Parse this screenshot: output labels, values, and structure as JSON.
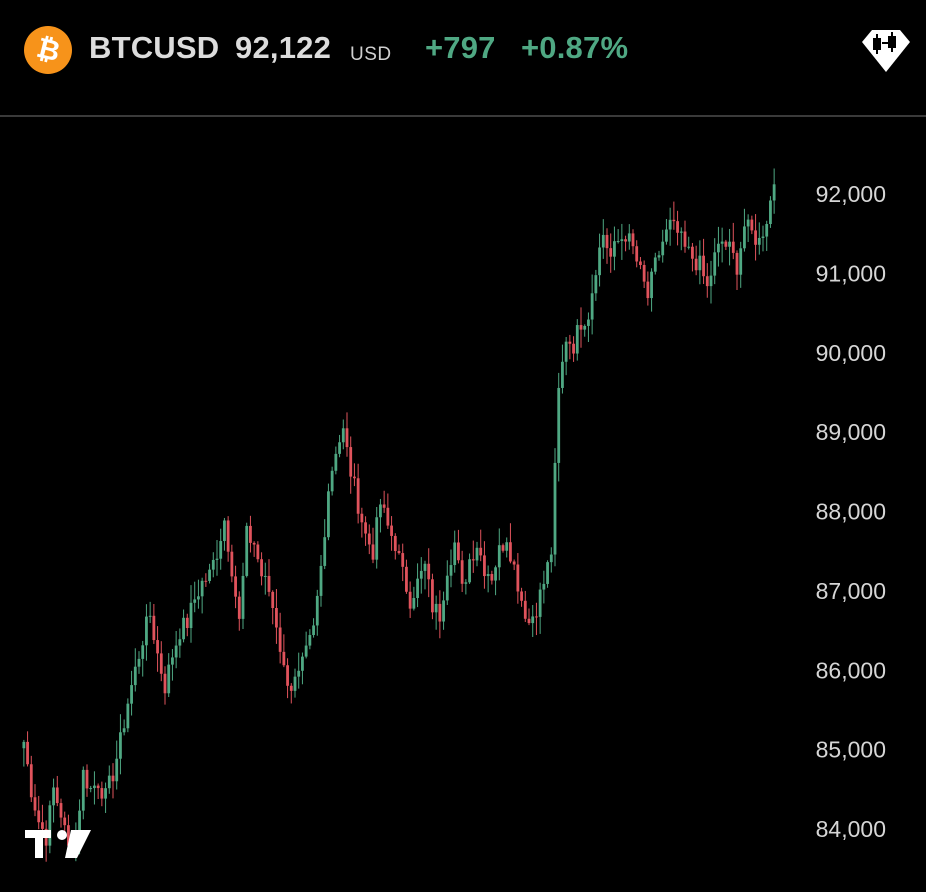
{
  "header": {
    "symbol": "BTCUSD",
    "price": "92,122",
    "currency": "USD",
    "change": "+797",
    "change_pct": "+0.87%",
    "coin_icon": "bitcoin-icon",
    "chart_type_icon": "candlestick-icon"
  },
  "colors": {
    "up": "#4fa883",
    "down": "#e0535c",
    "background": "#000000",
    "accent": "#f7931a"
  },
  "chart_data": {
    "type": "candlestick",
    "title": "",
    "xlabel": "",
    "ylabel": "",
    "y_axis_side": "right",
    "grid": false,
    "legend": false,
    "ylim": [
      83600,
      92900
    ],
    "yticks": [
      84000,
      85000,
      86000,
      87000,
      88000,
      89000,
      90000,
      91000,
      92000
    ],
    "ytick_labels": [
      "84,000",
      "85,000",
      "86,000",
      "87,000",
      "88,000",
      "89,000",
      "90,000",
      "91,000",
      "92,000"
    ],
    "close_path": [
      [
        0,
        85100
      ],
      [
        2,
        84500
      ],
      [
        4,
        84100
      ],
      [
        6,
        83900
      ],
      [
        8,
        84500
      ],
      [
        10,
        84200
      ],
      [
        12,
        83750
      ],
      [
        14,
        83900
      ],
      [
        16,
        84700
      ],
      [
        18,
        84500
      ],
      [
        20,
        84600
      ],
      [
        22,
        84400
      ],
      [
        24,
        84700
      ],
      [
        26,
        85100
      ],
      [
        28,
        85600
      ],
      [
        30,
        86000
      ],
      [
        32,
        86400
      ],
      [
        34,
        86700
      ],
      [
        36,
        86200
      ],
      [
        38,
        85800
      ],
      [
        40,
        86200
      ],
      [
        42,
        86500
      ],
      [
        44,
        86600
      ],
      [
        46,
        86900
      ],
      [
        48,
        87100
      ],
      [
        50,
        87200
      ],
      [
        52,
        87500
      ],
      [
        54,
        87900
      ],
      [
        56,
        87300
      ],
      [
        58,
        86600
      ],
      [
        60,
        87700
      ],
      [
        62,
        87600
      ],
      [
        64,
        87200
      ],
      [
        66,
        87000
      ],
      [
        68,
        86600
      ],
      [
        70,
        86000
      ],
      [
        72,
        85800
      ],
      [
        74,
        85900
      ],
      [
        76,
        86200
      ],
      [
        78,
        86500
      ],
      [
        80,
        87300
      ],
      [
        82,
        88300
      ],
      [
        84,
        88800
      ],
      [
        86,
        89000
      ],
      [
        88,
        88500
      ],
      [
        90,
        88100
      ],
      [
        92,
        87700
      ],
      [
        94,
        87500
      ],
      [
        96,
        88100
      ],
      [
        98,
        87800
      ],
      [
        100,
        87600
      ],
      [
        102,
        87200
      ],
      [
        104,
        86900
      ],
      [
        106,
        87100
      ],
      [
        108,
        87300
      ],
      [
        110,
        86800
      ],
      [
        112,
        86700
      ],
      [
        114,
        87300
      ],
      [
        116,
        87600
      ],
      [
        118,
        87000
      ],
      [
        120,
        87400
      ],
      [
        122,
        87600
      ],
      [
        124,
        87300
      ],
      [
        126,
        87200
      ],
      [
        128,
        87500
      ],
      [
        130,
        87700
      ],
      [
        132,
        87300
      ],
      [
        134,
        86900
      ],
      [
        136,
        86600
      ],
      [
        138,
        86800
      ],
      [
        140,
        87100
      ],
      [
        142,
        87500
      ],
      [
        144,
        89500
      ],
      [
        146,
        90200
      ],
      [
        148,
        90100
      ],
      [
        150,
        90400
      ],
      [
        152,
        90500
      ],
      [
        154,
        91100
      ],
      [
        156,
        91500
      ],
      [
        158,
        91200
      ],
      [
        160,
        91400
      ],
      [
        162,
        91500
      ],
      [
        164,
        91300
      ],
      [
        166,
        91000
      ],
      [
        168,
        90700
      ],
      [
        170,
        91100
      ],
      [
        172,
        91400
      ],
      [
        174,
        91600
      ],
      [
        176,
        91500
      ],
      [
        178,
        91300
      ],
      [
        180,
        91200
      ],
      [
        182,
        91100
      ],
      [
        184,
        90800
      ],
      [
        186,
        91200
      ],
      [
        188,
        91400
      ],
      [
        190,
        91300
      ],
      [
        192,
        91100
      ],
      [
        194,
        91600
      ],
      [
        196,
        91500
      ],
      [
        198,
        91400
      ],
      [
        200,
        91700
      ],
      [
        202,
        92122
      ]
    ]
  }
}
